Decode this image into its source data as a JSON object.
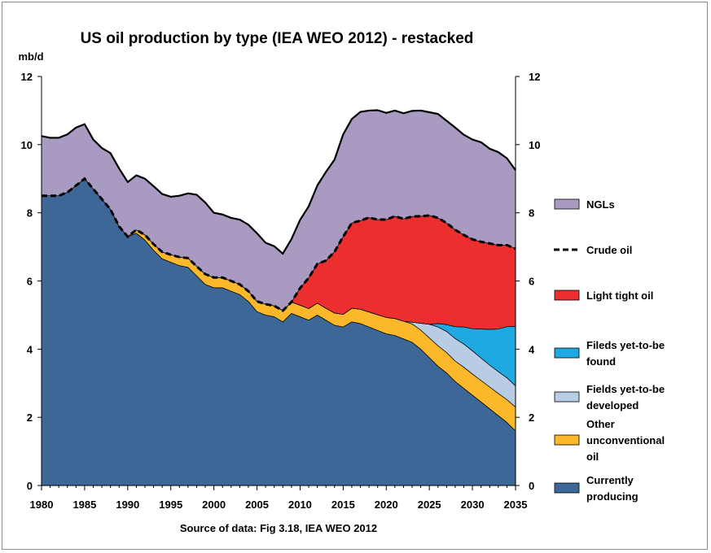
{
  "chart_data": {
    "type": "area",
    "title": "US oil production by type (IEA WEO 2012) - restacked",
    "ylabel": "mb/d",
    "ylim": [
      0,
      12
    ],
    "y_ticks": [
      "0",
      "2",
      "4",
      "6",
      "8",
      "10",
      "12"
    ],
    "xlim": [
      1980,
      2035
    ],
    "x_ticks": [
      "1980",
      "1985",
      "1990",
      "1995",
      "2000",
      "2005",
      "2010",
      "2015",
      "2020",
      "2025",
      "2030",
      "2035"
    ],
    "source": "Source of data:  Fig 3.18, IEA WEO 2012",
    "grid": false,
    "legend_position": "right",
    "years": [
      1980,
      1981,
      1982,
      1983,
      1984,
      1985,
      1986,
      1987,
      1988,
      1989,
      1990,
      1991,
      1992,
      1993,
      1994,
      1995,
      1996,
      1997,
      1998,
      1999,
      2000,
      2001,
      2002,
      2003,
      2004,
      2005,
      2006,
      2007,
      2008,
      2009,
      2010,
      2011,
      2012,
      2013,
      2014,
      2015,
      2016,
      2017,
      2018,
      2019,
      2020,
      2021,
      2022,
      2023,
      2024,
      2025,
      2026,
      2027,
      2028,
      2029,
      2030,
      2031,
      2032,
      2033,
      2034,
      2035
    ],
    "series": [
      {
        "name": "Currently producing",
        "color": "#3c6797",
        "values": [
          8.5,
          8.5,
          8.5,
          8.6,
          8.8,
          9.0,
          8.7,
          8.4,
          8.1,
          7.6,
          7.3,
          7.4,
          7.2,
          6.9,
          6.65,
          6.55,
          6.45,
          6.4,
          6.15,
          5.9,
          5.8,
          5.8,
          5.7,
          5.6,
          5.4,
          5.1,
          5.0,
          4.95,
          4.8,
          5.05,
          4.95,
          4.85,
          5.0,
          4.85,
          4.7,
          4.65,
          4.8,
          4.75,
          4.65,
          4.55,
          4.45,
          4.4,
          4.3,
          4.2,
          4.0,
          3.75,
          3.5,
          3.3,
          3.05,
          2.85,
          2.65,
          2.45,
          2.25,
          2.05,
          1.85,
          1.6
        ]
      },
      {
        "name": "Other unconventional oil",
        "color": "#fbb82a",
        "values": [
          0,
          0,
          0,
          0,
          0,
          0,
          0,
          0,
          0,
          0,
          0,
          0.1,
          0.15,
          0.18,
          0.2,
          0.22,
          0.25,
          0.27,
          0.28,
          0.3,
          0.3,
          0.3,
          0.3,
          0.3,
          0.3,
          0.3,
          0.32,
          0.32,
          0.33,
          0.33,
          0.34,
          0.34,
          0.35,
          0.35,
          0.36,
          0.37,
          0.4,
          0.42,
          0.44,
          0.46,
          0.48,
          0.5,
          0.52,
          0.54,
          0.56,
          0.58,
          0.6,
          0.6,
          0.6,
          0.62,
          0.62,
          0.63,
          0.64,
          0.65,
          0.67,
          0.7
        ]
      },
      {
        "name": "Fields yet-to-be developed",
        "color": "#b8cce4",
        "values": [
          0,
          0,
          0,
          0,
          0,
          0,
          0,
          0,
          0,
          0,
          0,
          0,
          0,
          0,
          0,
          0,
          0,
          0,
          0,
          0,
          0,
          0,
          0,
          0,
          0,
          0,
          0,
          0,
          0,
          0,
          0,
          0,
          0,
          0,
          0,
          0,
          0,
          0,
          0,
          0,
          0,
          0,
          0,
          0.05,
          0.2,
          0.4,
          0.55,
          0.62,
          0.66,
          0.68,
          0.68,
          0.66,
          0.64,
          0.64,
          0.64,
          0.62
        ]
      },
      {
        "name": "Fileds yet-to-be found",
        "color": "#1fa9e1",
        "values": [
          0,
          0,
          0,
          0,
          0,
          0,
          0,
          0,
          0,
          0,
          0,
          0,
          0,
          0,
          0,
          0,
          0,
          0,
          0,
          0,
          0,
          0,
          0,
          0,
          0,
          0,
          0,
          0,
          0,
          0,
          0,
          0,
          0,
          0,
          0,
          0,
          0,
          0,
          0,
          0,
          0,
          0,
          0,
          0,
          0,
          0,
          0.1,
          0.2,
          0.35,
          0.5,
          0.65,
          0.85,
          1.05,
          1.25,
          1.5,
          1.75
        ]
      },
      {
        "name": "Light tight oil",
        "color": "#ed2e2e",
        "values": [
          0,
          0,
          0,
          0,
          0,
          0,
          0,
          0,
          0,
          0,
          0,
          0,
          0,
          0,
          0,
          0,
          0,
          0,
          0,
          0,
          0,
          0,
          0,
          0,
          0,
          0,
          0,
          0,
          0,
          0,
          0.5,
          0.9,
          1.15,
          1.4,
          1.8,
          2.28,
          2.5,
          2.6,
          2.77,
          2.79,
          2.87,
          3.0,
          3.0,
          3.1,
          3.14,
          3.19,
          3.1,
          2.98,
          2.84,
          2.7,
          2.62,
          2.56,
          2.52,
          2.46,
          2.39,
          2.28
        ]
      },
      {
        "name": "NGLs",
        "color": "#a99ac1",
        "values": [
          1.75,
          1.7,
          1.7,
          1.7,
          1.7,
          1.6,
          1.45,
          1.5,
          1.65,
          1.7,
          1.6,
          1.6,
          1.65,
          1.7,
          1.7,
          1.7,
          1.8,
          1.9,
          2.1,
          2.1,
          1.9,
          1.85,
          1.85,
          1.9,
          1.95,
          2.0,
          1.8,
          1.75,
          1.67,
          1.85,
          2.0,
          2.1,
          2.3,
          2.6,
          2.7,
          3.0,
          3.05,
          3.19,
          3.14,
          3.21,
          3.13,
          3.1,
          3.1,
          3.1,
          3.1,
          3.03,
          3.05,
          3.0,
          3.0,
          2.94,
          2.93,
          2.92,
          2.78,
          2.73,
          2.55,
          2.3
        ]
      }
    ],
    "crude_oil_line": {
      "name": "Crude oil",
      "style": "dashed",
      "color": "#000000"
    }
  },
  "legend": [
    {
      "label": "NGLs",
      "color": "#a99ac1",
      "kind": "swatch"
    },
    {
      "label": "Crude oil",
      "color": "#000000",
      "kind": "dash"
    },
    {
      "label": "Light tight oil",
      "color": "#ed2e2e",
      "kind": "swatch"
    },
    {
      "lines": [
        "Fileds yet-to-be",
        "found"
      ],
      "color": "#1fa9e1",
      "kind": "swatch"
    },
    {
      "lines": [
        "Fields yet-to-be",
        "developed"
      ],
      "color": "#b8cce4",
      "kind": "swatch"
    },
    {
      "lines": [
        "Other",
        "unconventional",
        "oil"
      ],
      "color": "#fbb82a",
      "kind": "swatch"
    },
    {
      "lines": [
        "Currently",
        "producing"
      ],
      "color": "#3c6797",
      "kind": "swatch"
    }
  ]
}
